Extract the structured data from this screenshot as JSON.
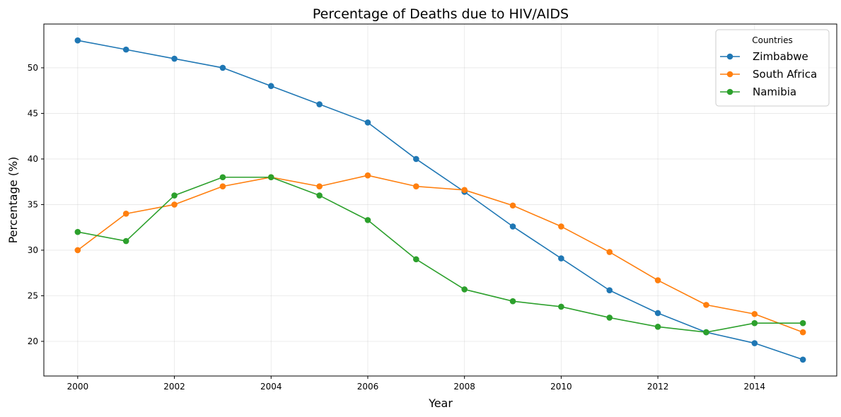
{
  "chart_data": {
    "type": "line",
    "title": "Percentage of Deaths due to HIV/AIDS",
    "xlabel": "Year",
    "ylabel": "Percentage (%)",
    "x": [
      2000,
      2001,
      2002,
      2003,
      2004,
      2005,
      2006,
      2007,
      2008,
      2009,
      2010,
      2011,
      2012,
      2013,
      2014,
      2015
    ],
    "xlim": [
      1999.3,
      2015.7
    ],
    "ylim": [
      16.2,
      54.8
    ],
    "x_ticks": [
      "2000",
      "2002",
      "2004",
      "2006",
      "2008",
      "2010",
      "2012",
      "2014"
    ],
    "y_ticks": [
      "20",
      "25",
      "30",
      "35",
      "40",
      "45",
      "50"
    ],
    "grid": true,
    "legend": {
      "title": "Countries",
      "placement": "top-right"
    },
    "series": [
      {
        "name": "Zimbabwe",
        "color": "#1f77b4",
        "values": [
          53,
          52,
          51,
          50,
          48,
          46,
          44,
          40,
          36.4,
          32.6,
          29.1,
          25.6,
          23.1,
          21.0,
          19.8,
          18.0
        ]
      },
      {
        "name": "South Africa",
        "color": "#ff7f0e",
        "values": [
          30,
          34,
          35,
          37,
          38,
          37,
          38.2,
          37,
          36.6,
          34.9,
          32.6,
          29.8,
          26.7,
          24.0,
          23.0,
          21.0
        ]
      },
      {
        "name": "Namibia",
        "color": "#2ca02c",
        "values": [
          32,
          31,
          36,
          38,
          38,
          36,
          33.3,
          29,
          25.7,
          24.4,
          23.8,
          22.6,
          21.6,
          21.0,
          22.0,
          22.0
        ]
      }
    ]
  }
}
